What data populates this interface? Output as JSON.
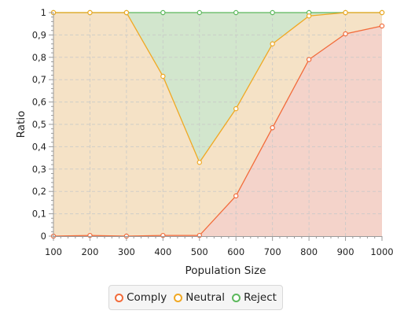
{
  "chart_data": {
    "type": "area",
    "stacked_cumulative": true,
    "xlabel": "Population Size",
    "ylabel": "Ratio",
    "x": [
      100,
      200,
      300,
      400,
      500,
      600,
      700,
      800,
      900,
      1000
    ],
    "x_ticks": [
      "100",
      "200",
      "300",
      "400",
      "500",
      "600",
      "700",
      "800",
      "900",
      "1000"
    ],
    "y_ticks": [
      "0",
      "0,1",
      "0,2",
      "0,3",
      "0,4",
      "0,5",
      "0,6",
      "0,7",
      "0,8",
      "0,9",
      "1"
    ],
    "xlim": [
      100,
      1000
    ],
    "ylim": [
      0,
      1
    ],
    "grid": true,
    "legend_position": "bottom",
    "series": [
      {
        "name": "Comply",
        "color": "#f26b3a",
        "fill": "#f4d3ca",
        "values": [
          0,
          0.003,
          0,
          0.003,
          0.003,
          0.18,
          0.485,
          0.79,
          0.905,
          0.94
        ]
      },
      {
        "name": "Neutral",
        "color": "#f0a823",
        "fill": "#f5e2c6",
        "values": [
          1,
          1,
          1,
          0.715,
          0.33,
          0.57,
          0.86,
          0.985,
          1,
          1
        ]
      },
      {
        "name": "Reject",
        "color": "#5cb85c",
        "fill": "#d2e6cd",
        "values": [
          1,
          1,
          1,
          1,
          1,
          1,
          1,
          1,
          1,
          1
        ]
      }
    ]
  }
}
